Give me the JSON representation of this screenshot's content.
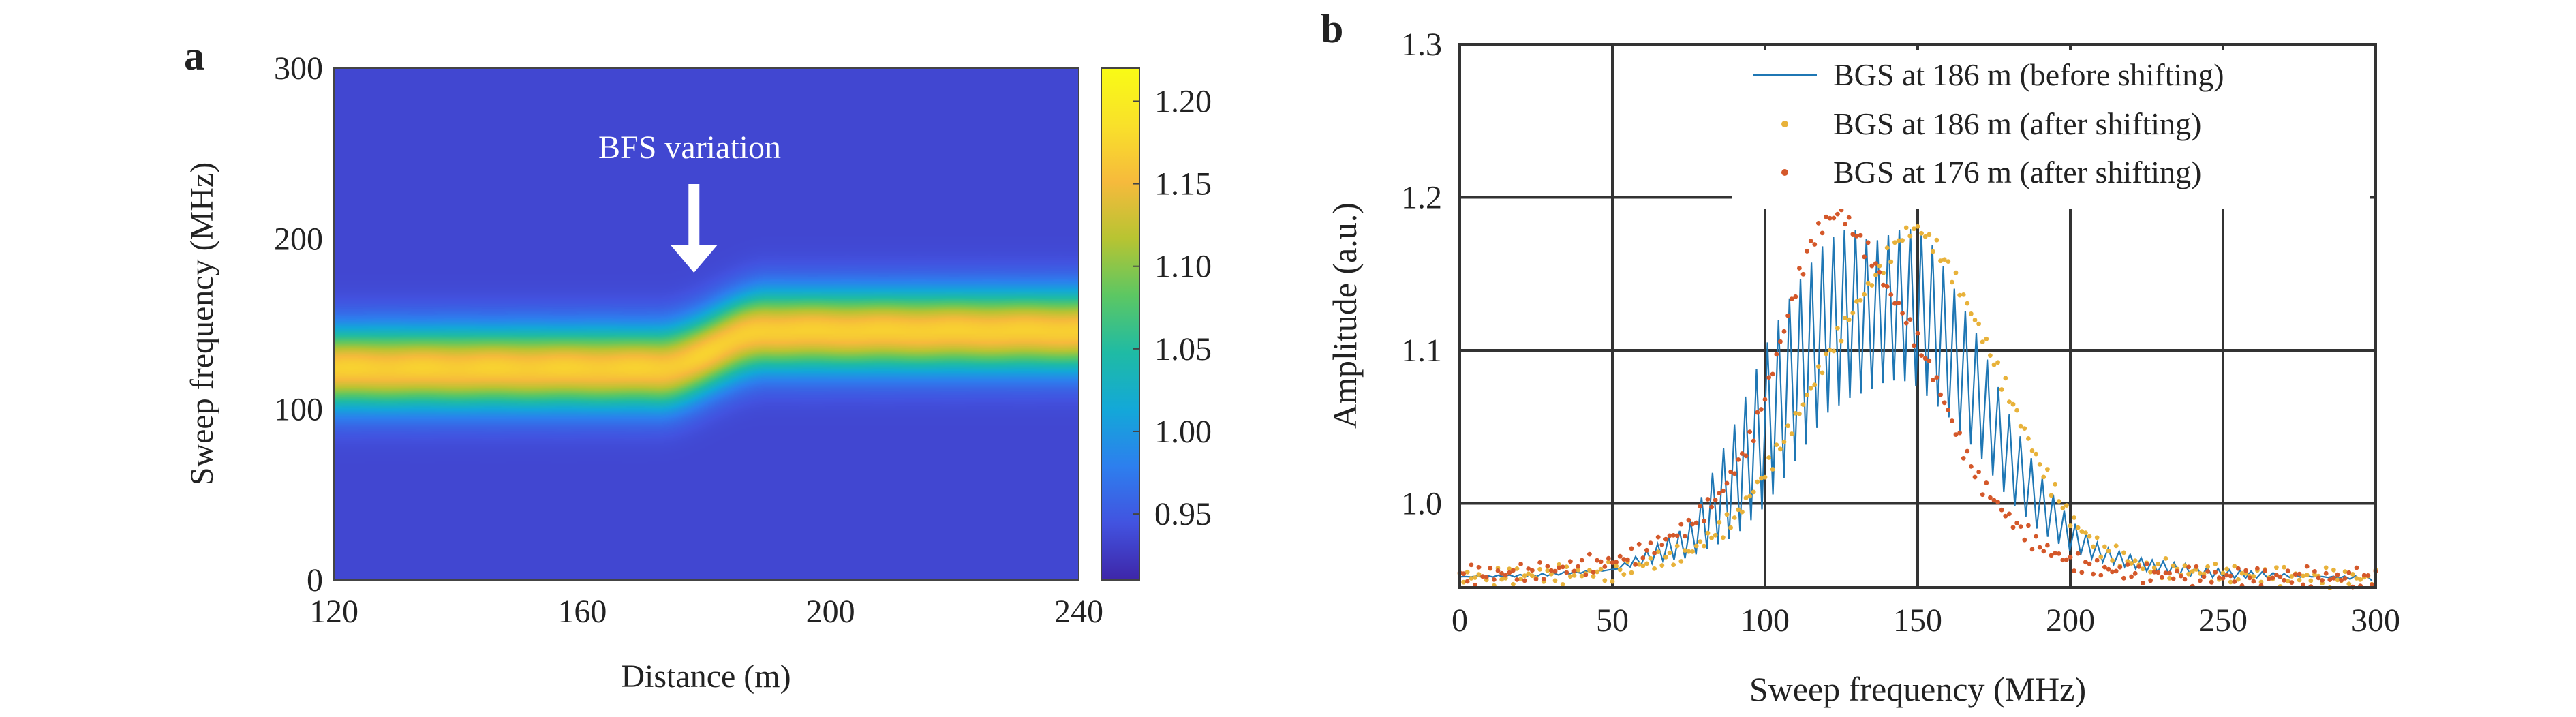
{
  "chart_data": [
    {
      "panel_label": "a",
      "type": "heatmap",
      "xlabel": "Distance (m)",
      "ylabel": "Sweep frequency (MHz)",
      "xlim": [
        120,
        240
      ],
      "ylim": [
        0,
        300
      ],
      "x_ticks": [
        "120",
        "160",
        "200",
        "240"
      ],
      "y_ticks": [
        "0",
        "100",
        "200",
        "300"
      ],
      "annotation": "BFS variation",
      "annotation_x": 178,
      "colorbar": {
        "range": [
          0.91,
          1.22
        ],
        "ticks": [
          "0.95",
          "1.00",
          "1.05",
          "1.10",
          "1.15",
          "1.20"
        ],
        "colormap": [
          "#3e26a8",
          "#4253e0",
          "#2d7fee",
          "#13a8d8",
          "#1fbba4",
          "#5cc763",
          "#b7c432",
          "#f6ba3c",
          "#f9e12a",
          "#f9fb15"
        ]
      },
      "ridge": {
        "bfs_before_mhz": 124,
        "bfs_after_mhz": 146,
        "transition_start_m": 172,
        "transition_end_m": 190,
        "peak_value": 1.17,
        "background_value": 0.935,
        "width_mhz": 32
      }
    },
    {
      "panel_label": "b",
      "type": "line",
      "xlabel": "Sweep frequency (MHz)",
      "ylabel": "Amplitude (a.u.)",
      "xlim": [
        0,
        300
      ],
      "ylim": [
        0.945,
        1.3
      ],
      "x_ticks": [
        "0",
        "50",
        "100",
        "150",
        "200",
        "250",
        "300"
      ],
      "y_ticks": [
        "1.0",
        "1.1",
        "1.2",
        "1.3"
      ],
      "grid": true,
      "legend_position": "top-right",
      "series": [
        {
          "name": "BGS at 186 m (before shifting)",
          "style": "line",
          "color": "#1f77b4",
          "x": [
            0,
            25,
            50,
            75,
            90,
            100,
            110,
            120,
            128,
            135,
            140,
            145,
            150,
            155,
            160,
            170,
            180,
            190,
            200,
            210,
            225,
            250,
            275,
            300
          ],
          "y_low": [
            0.952,
            0.952,
            0.955,
            0.965,
            0.98,
            1.0,
            1.03,
            1.06,
            1.07,
            1.075,
            1.08,
            1.08,
            1.075,
            1.065,
            1.055,
            1.03,
            1.0,
            0.98,
            0.968,
            0.962,
            0.957,
            0.953,
            0.952,
            0.951
          ],
          "y_high": [
            0.952,
            0.954,
            0.958,
            0.985,
            1.05,
            1.1,
            1.14,
            1.17,
            1.18,
            1.17,
            1.175,
            1.18,
            1.18,
            1.17,
            1.15,
            1.11,
            1.06,
            1.02,
            0.99,
            0.972,
            0.962,
            0.955,
            0.953,
            0.951
          ]
        },
        {
          "name": "BGS at 186 m (after shifting)",
          "style": "dots",
          "color": "#e8b23a",
          "x": [
            0,
            25,
            50,
            75,
            90,
            100,
            110,
            120,
            130,
            140,
            145,
            150,
            155,
            160,
            170,
            180,
            190,
            200,
            210,
            225,
            250,
            275,
            300
          ],
          "y": [
            0.952,
            0.953,
            0.955,
            0.968,
            0.99,
            1.02,
            1.055,
            1.095,
            1.13,
            1.16,
            1.175,
            1.18,
            1.17,
            1.155,
            1.115,
            1.07,
            1.025,
            0.99,
            0.97,
            0.958,
            0.954,
            0.952,
            0.951
          ]
        },
        {
          "name": "BGS at 176 m (after shifting)",
          "style": "dots",
          "color": "#d4582a",
          "x": [
            0,
            25,
            50,
            60,
            75,
            85,
            95,
            100,
            105,
            110,
            115,
            120,
            125,
            130,
            135,
            140,
            145,
            150,
            155,
            160,
            165,
            170,
            180,
            190,
            200,
            210,
            225,
            250,
            275,
            300
          ],
          "y": [
            0.953,
            0.955,
            0.962,
            0.968,
            0.985,
            1.005,
            1.04,
            1.07,
            1.105,
            1.14,
            1.17,
            1.185,
            1.19,
            1.175,
            1.16,
            1.14,
            1.125,
            1.105,
            1.085,
            1.06,
            1.035,
            1.015,
            0.99,
            0.972,
            0.962,
            0.957,
            0.954,
            0.952,
            0.952,
            0.951
          ]
        }
      ]
    }
  ]
}
